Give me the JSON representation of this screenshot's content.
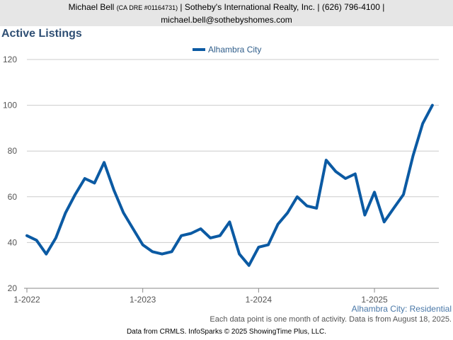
{
  "header": {
    "name": "Michael Bell",
    "license": "(CA DRE #01164731)",
    "company_phone": "| Sotheby's International Realty, Inc. | (626) 796-4100 |",
    "email": "michael.bell@sothebyshomes.com"
  },
  "page_title": "Active Listings",
  "chart_subtitle": "Alhambra City: Residential",
  "note": "Each data point is one month of activity. Data is from August 18, 2025.",
  "footer": "Data from CRMLS. InfoSparks © 2025 ShowingTime Plus, LLC.",
  "colors": {
    "series": "#0b5aa3",
    "grid": "#cccccc",
    "title": "#2f4f74"
  },
  "chart_data": {
    "type": "line",
    "title": "Active Listings",
    "ylim": [
      20,
      120
    ],
    "yticks": [
      20,
      40,
      60,
      80,
      100,
      120
    ],
    "xticks": [
      {
        "label": "1-2022",
        "index": 0
      },
      {
        "label": "1-2023",
        "index": 12
      },
      {
        "label": "1-2024",
        "index": 24
      },
      {
        "label": "1-2025",
        "index": 36
      }
    ],
    "grid": true,
    "legend_position": "top-center",
    "series": [
      {
        "name": "Alhambra City",
        "values": [
          43,
          41,
          35,
          42,
          53,
          61,
          68,
          66,
          75,
          63,
          53,
          46,
          39,
          36,
          35,
          36,
          43,
          44,
          46,
          42,
          43,
          49,
          35,
          30,
          38,
          39,
          48,
          53,
          60,
          56,
          55,
          76,
          71,
          68,
          70,
          52,
          62,
          49,
          55,
          61,
          78,
          92,
          100
        ]
      }
    ]
  }
}
